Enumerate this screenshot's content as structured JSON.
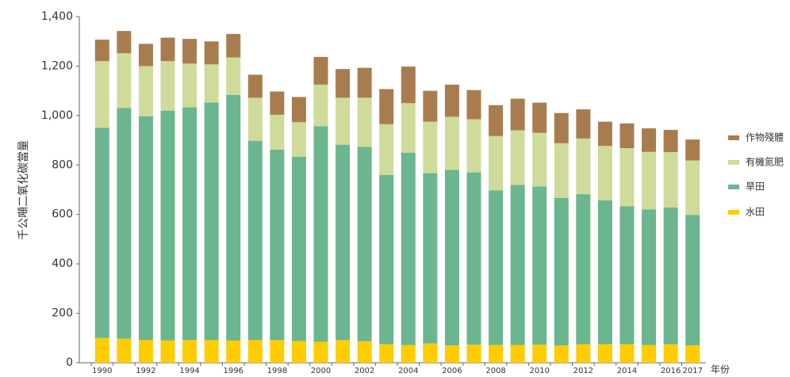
{
  "chart_data": {
    "type": "stacked-bar",
    "y_label": "千公噸二氧化碳當量",
    "x_label": "年份",
    "categories": [
      "1990",
      null,
      "1992",
      null,
      "1994",
      null,
      "1996",
      null,
      "1998",
      null,
      "2000",
      null,
      "2002",
      null,
      "2004",
      null,
      "2006",
      null,
      "2008",
      null,
      "2010",
      null,
      "2012",
      null,
      "2014",
      null,
      "2016",
      "2017"
    ],
    "series": [
      {
        "name": "水田",
        "color": "#ffcc00",
        "values": [
          100,
          97,
          92,
          90,
          92,
          92,
          90,
          92,
          92,
          88,
          85,
          92,
          87,
          75,
          72,
          78,
          70,
          73,
          72,
          72,
          73,
          70,
          75,
          75,
          75,
          72,
          75,
          70
        ]
      },
      {
        "name": "旱田",
        "color": "#6bb58f",
        "values": [
          850,
          933,
          905,
          930,
          941,
          961,
          993,
          806,
          770,
          745,
          872,
          790,
          786,
          685,
          778,
          689,
          710,
          697,
          625,
          648,
          640,
          597,
          607,
          582,
          558,
          548,
          553,
          528
        ]
      },
      {
        "name": "有機氮肥",
        "color": "#cfdb9b",
        "values": [
          270,
          222,
          203,
          200,
          177,
          154,
          152,
          174,
          141,
          140,
          168,
          190,
          199,
          205,
          200,
          208,
          215,
          215,
          220,
          220,
          217,
          221,
          225,
          220,
          235,
          233,
          224,
          220
        ]
      },
      {
        "name": "作物殘體",
        "color": "#a97c50",
        "values": [
          87,
          90,
          90,
          95,
          100,
          93,
          95,
          93,
          94,
          102,
          112,
          116,
          121,
          142,
          148,
          125,
          130,
          118,
          125,
          128,
          122,
          122,
          118,
          98,
          100,
          95,
          90,
          85
        ]
      }
    ],
    "ylim": [
      0,
      1400
    ],
    "yticks": [
      0,
      200,
      400,
      600,
      800,
      {
        "value": 1000,
        "label": "1,000"
      },
      {
        "value": 1200,
        "label": "1,200"
      },
      {
        "value": 1400,
        "label": "1,400"
      }
    ],
    "grid": false,
    "legend": "right"
  }
}
